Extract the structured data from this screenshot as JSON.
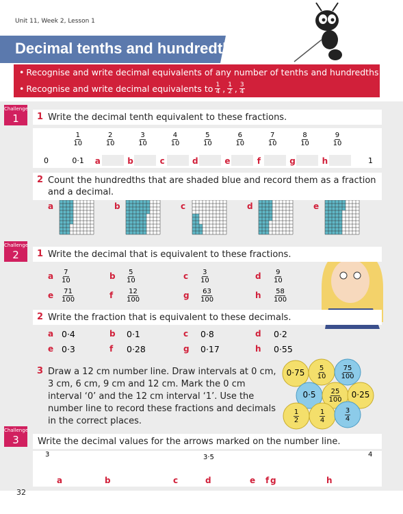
{
  "header": {
    "lesson": "Unit 11, Week 2, Lesson 1",
    "title": "Decimal tenths and hundredths"
  },
  "objectives": {
    "items": [
      "Recognise and write decimal equivalents of any number of tenths and hundredths",
      "Recognise and write decimal equivalents to"
    ],
    "fractions": [
      {
        "n": "1",
        "d": "4"
      },
      {
        "n": "1",
        "d": "2"
      },
      {
        "n": "3",
        "d": "4"
      }
    ],
    "separator": ","
  },
  "challenge_word": "Challenge",
  "challenge1": {
    "label": "1",
    "q1": {
      "number": "1",
      "text": "Write the decimal tenth equivalent to these fractions.",
      "fractions": [
        {
          "n": "1",
          "d": "10"
        },
        {
          "n": "2",
          "d": "10"
        },
        {
          "n": "3",
          "d": "10"
        },
        {
          "n": "4",
          "d": "10"
        },
        {
          "n": "5",
          "d": "10"
        },
        {
          "n": "6",
          "d": "10"
        },
        {
          "n": "7",
          "d": "10"
        },
        {
          "n": "8",
          "d": "10"
        },
        {
          "n": "9",
          "d": "10"
        }
      ],
      "start": "0",
      "first": "0·1",
      "letters": [
        "a",
        "b",
        "c",
        "d",
        "e",
        "f",
        "g",
        "h"
      ],
      "end": "1"
    },
    "q2": {
      "number": "2",
      "text": "Count the hundredths that are shaded blue and record them as a fraction and a decimal.",
      "letters": [
        "a",
        "b",
        "c",
        "d",
        "e"
      ]
    }
  },
  "challenge2": {
    "label": "2",
    "q1": {
      "number": "1",
      "text": "Write the decimal that is equivalent to these fractions.",
      "items": [
        {
          "letter": "a",
          "n": "7",
          "d": "10"
        },
        {
          "letter": "b",
          "n": "5",
          "d": "10"
        },
        {
          "letter": "c",
          "n": "3",
          "d": "10"
        },
        {
          "letter": "d",
          "n": "9",
          "d": "10"
        },
        {
          "letter": "e",
          "n": "71",
          "d": "100"
        },
        {
          "letter": "f",
          "n": "12",
          "d": "100"
        },
        {
          "letter": "g",
          "n": "63",
          "d": "100"
        },
        {
          "letter": "h",
          "n": "58",
          "d": "100"
        }
      ]
    },
    "q2": {
      "number": "2",
      "text": "Write the fraction that is equivalent to these decimals.",
      "items": [
        {
          "letter": "a",
          "value": "0·4"
        },
        {
          "letter": "b",
          "value": "0·1"
        },
        {
          "letter": "c",
          "value": "0·8"
        },
        {
          "letter": "d",
          "value": "0·2"
        },
        {
          "letter": "e",
          "value": "0·3"
        },
        {
          "letter": "f",
          "value": "0·28"
        },
        {
          "letter": "g",
          "value": "0·17"
        },
        {
          "letter": "h",
          "value": "0·55"
        }
      ]
    },
    "q3": {
      "number": "3",
      "text": "Draw a 12 cm number line. Draw intervals at 0 cm, 3 cm, 6 cm, 9 cm and 12 cm. Mark the 0 cm interval ‘0’ and the 12 cm interval ‘1’. Use the number line to record these fractions and decimals in the correct places.",
      "circles": [
        {
          "text": "0·75"
        },
        {
          "n": "5",
          "d": "10"
        },
        {
          "n": "75",
          "d": "100"
        },
        {
          "text": "0·5"
        },
        {
          "n": "25",
          "d": "100"
        },
        {
          "text": "0·25"
        },
        {
          "n": "1",
          "d": "2"
        },
        {
          "n": "1",
          "d": "4"
        },
        {
          "n": "3",
          "d": "4"
        }
      ]
    }
  },
  "challenge3": {
    "label": "3",
    "text": "Write the decimal values for the arrows marked on the number line.",
    "start": "3",
    "middle": "3·5",
    "end": "4",
    "letters": [
      "a",
      "b",
      "c",
      "d",
      "e",
      "f",
      "g",
      "h"
    ]
  },
  "page_number": "32"
}
